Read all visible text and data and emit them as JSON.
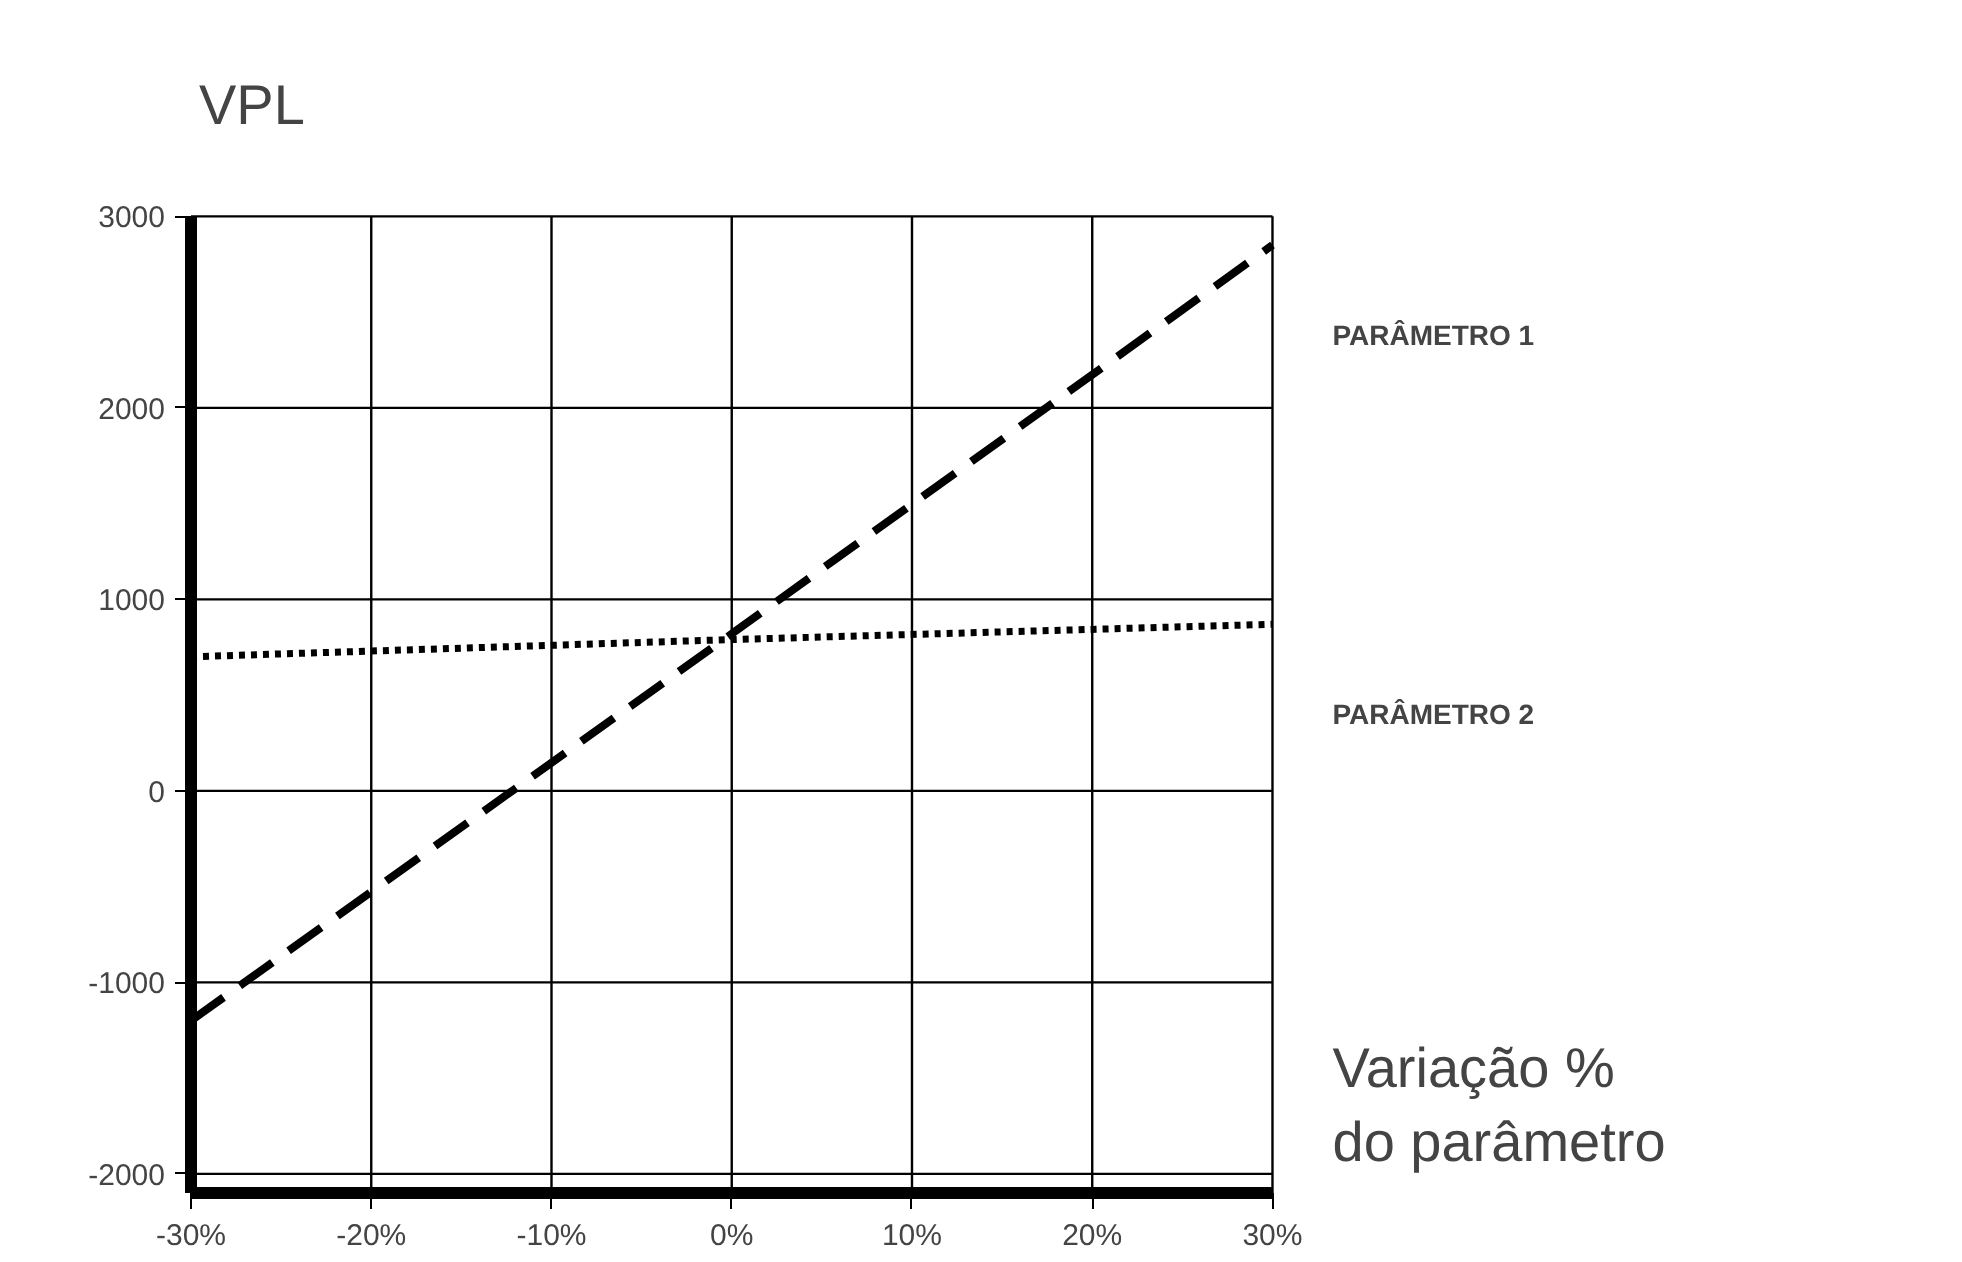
{
  "chart_data": {
    "type": "line",
    "xlabel": "Variação %\ndo parâmetro",
    "ylabel": "VPL",
    "x": [
      -30,
      0,
      30
    ],
    "series": [
      {
        "name": "PARÂMETRO 1",
        "color": "#000000",
        "line_style": "dashed",
        "values": [
          -1200,
          820,
          2850
        ]
      },
      {
        "name": "PARÂMETRO 2",
        "color": "#000000",
        "line_style": "dotted",
        "values": [
          700,
          790,
          870
        ]
      }
    ],
    "xlim": [
      -30,
      30
    ],
    "ylim": [
      -2100,
      3000
    ],
    "xticks": [
      {
        "value": -30,
        "label": "-30%"
      },
      {
        "value": -20,
        "label": "-20%"
      },
      {
        "value": -10,
        "label": "-10%"
      },
      {
        "value": 0,
        "label": "0%"
      },
      {
        "value": 10,
        "label": "10%"
      },
      {
        "value": 20,
        "label": "20%"
      },
      {
        "value": 30,
        "label": "30%"
      }
    ],
    "yticks": [
      -2000,
      -1000,
      0,
      1000,
      2000,
      3000
    ],
    "grid": true,
    "legend": false,
    "marker": "none"
  }
}
